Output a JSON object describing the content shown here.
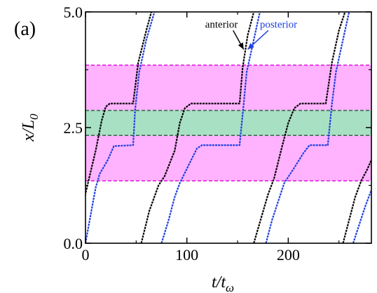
{
  "chart_data": {
    "type": "line",
    "panel_label": "(a)",
    "xlabel": {
      "main": "t/t",
      "sub": "ω"
    },
    "ylabel": {
      "main": "x/L",
      "sub": "0"
    },
    "xlim": [
      0,
      282
    ],
    "ylim": [
      0.0,
      5.0
    ],
    "x_ticks": [
      0,
      100,
      200
    ],
    "x_tick_labels": [
      "0",
      "100",
      "200"
    ],
    "y_ticks": [
      0.0,
      2.5,
      5.0
    ],
    "y_tick_labels": [
      "0.0",
      "2.5",
      "5.0"
    ],
    "bands": [
      {
        "name": "magenta-band",
        "y": [
          1.35,
          3.85
        ],
        "fill": "#ffb3ff",
        "line": "#e020e0"
      },
      {
        "name": "green-band",
        "y": [
          2.33,
          2.87
        ],
        "fill": "#a8e0c4",
        "line": "#3a6a50"
      }
    ],
    "series": [
      {
        "name": "anterior",
        "color": "#000000",
        "segments": [
          [
            [
              -5,
              0.6
            ],
            [
              3,
              1.35
            ],
            [
              10,
              2.0
            ],
            [
              16,
              2.65
            ],
            [
              20,
              2.95
            ],
            [
              24,
              3.02
            ],
            [
              47,
              3.02
            ],
            [
              52,
              3.9
            ],
            [
              60,
              4.6
            ],
            [
              65,
              5.0
            ]
          ],
          [
            [
              55,
              0.0
            ],
            [
              63,
              0.7
            ],
            [
              72,
              1.25
            ],
            [
              78,
              1.45
            ],
            [
              88,
              2.0
            ],
            [
              93,
              2.6
            ],
            [
              98,
              2.92
            ],
            [
              104,
              3.02
            ],
            [
              152,
              3.02
            ],
            [
              155,
              3.8
            ],
            [
              160,
              4.5
            ],
            [
              166,
              5.0
            ]
          ],
          [
            [
              166,
              0.0
            ],
            [
              174,
              0.6
            ],
            [
              180,
              1.05
            ],
            [
              186,
              1.4
            ],
            [
              194,
              2.1
            ],
            [
              200,
              2.6
            ],
            [
              206,
              2.92
            ],
            [
              212,
              3.02
            ],
            [
              237,
              3.02
            ],
            [
              243,
              3.9
            ],
            [
              250,
              4.6
            ],
            [
              256,
              5.0
            ]
          ],
          [
            [
              254,
              0.0
            ],
            [
              260,
              0.5
            ],
            [
              266,
              1.0
            ],
            [
              272,
              1.35
            ],
            [
              278,
              1.6
            ],
            [
              282,
              1.8
            ]
          ]
        ]
      },
      {
        "name": "posterior",
        "color": "#1f3fe0",
        "segments": [
          [
            [
              0,
              0.0
            ],
            [
              5,
              0.6
            ],
            [
              10,
              1.2
            ],
            [
              14,
              1.5
            ],
            [
              22,
              1.8
            ],
            [
              28,
              2.1
            ],
            [
              47,
              2.12
            ],
            [
              49,
              2.9
            ],
            [
              53,
              3.7
            ],
            [
              60,
              4.4
            ],
            [
              68,
              5.0
            ]
          ],
          [
            [
              75,
              0.0
            ],
            [
              82,
              0.5
            ],
            [
              88,
              1.0
            ],
            [
              93,
              1.3
            ],
            [
              102,
              1.7
            ],
            [
              110,
              2.05
            ],
            [
              115,
              2.12
            ],
            [
              152,
              2.12
            ],
            [
              156,
              3.0
            ],
            [
              159,
              3.7
            ],
            [
              164,
              4.2
            ],
            [
              172,
              5.0
            ]
          ],
          [
            [
              178,
              0.0
            ],
            [
              184,
              0.5
            ],
            [
              190,
              0.9
            ],
            [
              196,
              1.3
            ],
            [
              205,
              1.6
            ],
            [
              215,
              1.95
            ],
            [
              221,
              2.12
            ],
            [
              239,
              2.12
            ],
            [
              243,
              3.0
            ],
            [
              247,
              3.7
            ],
            [
              252,
              4.2
            ],
            [
              260,
              5.0
            ]
          ],
          [
            [
              264,
              0.0
            ],
            [
              270,
              0.4
            ],
            [
              276,
              0.8
            ],
            [
              282,
              1.15
            ]
          ]
        ]
      }
    ],
    "annotations": [
      {
        "text": "anterior",
        "color": "#000000",
        "text_xy": [
          118,
          4.66
        ],
        "arrow_to": [
          156,
          4.19
        ]
      },
      {
        "text": "posterior",
        "color": "#1f3fe0",
        "text_xy": [
          172,
          4.66
        ],
        "arrow_to": [
          160,
          4.19
        ]
      }
    ]
  }
}
